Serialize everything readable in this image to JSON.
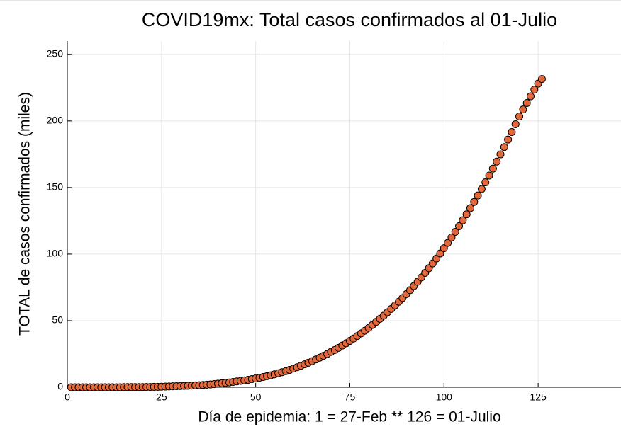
{
  "chart_data": {
    "type": "scatter",
    "title": "COVID19mx: Total casos confirmados al 01-Julio",
    "x_label": "Día de epidemia: 1 = 27-Feb ** 126 = 01-Julio",
    "y_label": "TOTAL de casos confirmados (miles)",
    "x": [
      1,
      2,
      3,
      4,
      5,
      6,
      7,
      8,
      9,
      10,
      11,
      12,
      13,
      14,
      15,
      16,
      17,
      18,
      19,
      20,
      21,
      22,
      23,
      24,
      25,
      26,
      27,
      28,
      29,
      30,
      31,
      32,
      33,
      34,
      35,
      36,
      37,
      38,
      39,
      40,
      41,
      42,
      43,
      44,
      45,
      46,
      47,
      48,
      49,
      50,
      51,
      52,
      53,
      54,
      55,
      56,
      57,
      58,
      59,
      60,
      61,
      62,
      63,
      64,
      65,
      66,
      67,
      68,
      69,
      70,
      71,
      72,
      73,
      74,
      75,
      76,
      77,
      78,
      79,
      80,
      81,
      82,
      83,
      84,
      85,
      86,
      87,
      88,
      89,
      90,
      91,
      92,
      93,
      94,
      95,
      96,
      97,
      98,
      99,
      100,
      101,
      102,
      103,
      104,
      105,
      106,
      107,
      108,
      109,
      110,
      111,
      112,
      113,
      114,
      115,
      116,
      117,
      118,
      119,
      120,
      121,
      122,
      123,
      124,
      125,
      126
    ],
    "values": [
      0,
      0,
      0,
      0,
      0,
      0,
      0,
      0,
      0,
      0,
      0,
      0,
      0,
      0,
      0.1,
      0.1,
      0.1,
      0.1,
      0.1,
      0.1,
      0.2,
      0.2,
      0.3,
      0.3,
      0.4,
      0.5,
      0.6,
      0.7,
      0.8,
      0.9,
      1.0,
      1.1,
      1.2,
      1.4,
      1.5,
      1.7,
      1.9,
      2.1,
      2.4,
      2.7,
      3.0,
      3.3,
      3.6,
      4.0,
      4.4,
      4.8,
      5.2,
      5.6,
      6.1,
      6.6,
      7.1,
      7.7,
      8.3,
      9.0,
      9.7,
      10.5,
      11.3,
      12.1,
      13.0,
      14.0,
      15.0,
      16.1,
      17.2,
      18.4,
      19.6,
      20.9,
      22.2,
      23.6,
      25.0,
      26.5,
      28.0,
      29.6,
      31.3,
      33.0,
      34.8,
      36.6,
      38.5,
      40.5,
      42.5,
      44.6,
      46.8,
      49.1,
      51.4,
      53.8,
      56.3,
      58.8,
      61.5,
      64.2,
      67.0,
      69.9,
      72.9,
      76.0,
      79.2,
      82.5,
      85.9,
      89.4,
      93.0,
      96.7,
      100.5,
      104.4,
      108.4,
      112.5,
      116.7,
      121.0,
      125.4,
      129.9,
      134.5,
      139.2,
      144.0,
      148.9,
      153.9,
      159.0,
      164.2,
      169.5,
      174.9,
      180.4,
      186.0,
      191.7,
      197.5,
      203.4,
      208.6,
      213.5,
      218.5,
      223.5,
      228.0,
      231.5
    ],
    "color": "#e5683a",
    "xlim": [
      0,
      147
    ],
    "xticks": [
      0,
      25,
      50,
      75,
      100,
      125
    ],
    "ylim": [
      0,
      260
    ],
    "yticks": [
      0,
      50,
      100,
      150,
      200,
      250
    ],
    "grid": true
  }
}
